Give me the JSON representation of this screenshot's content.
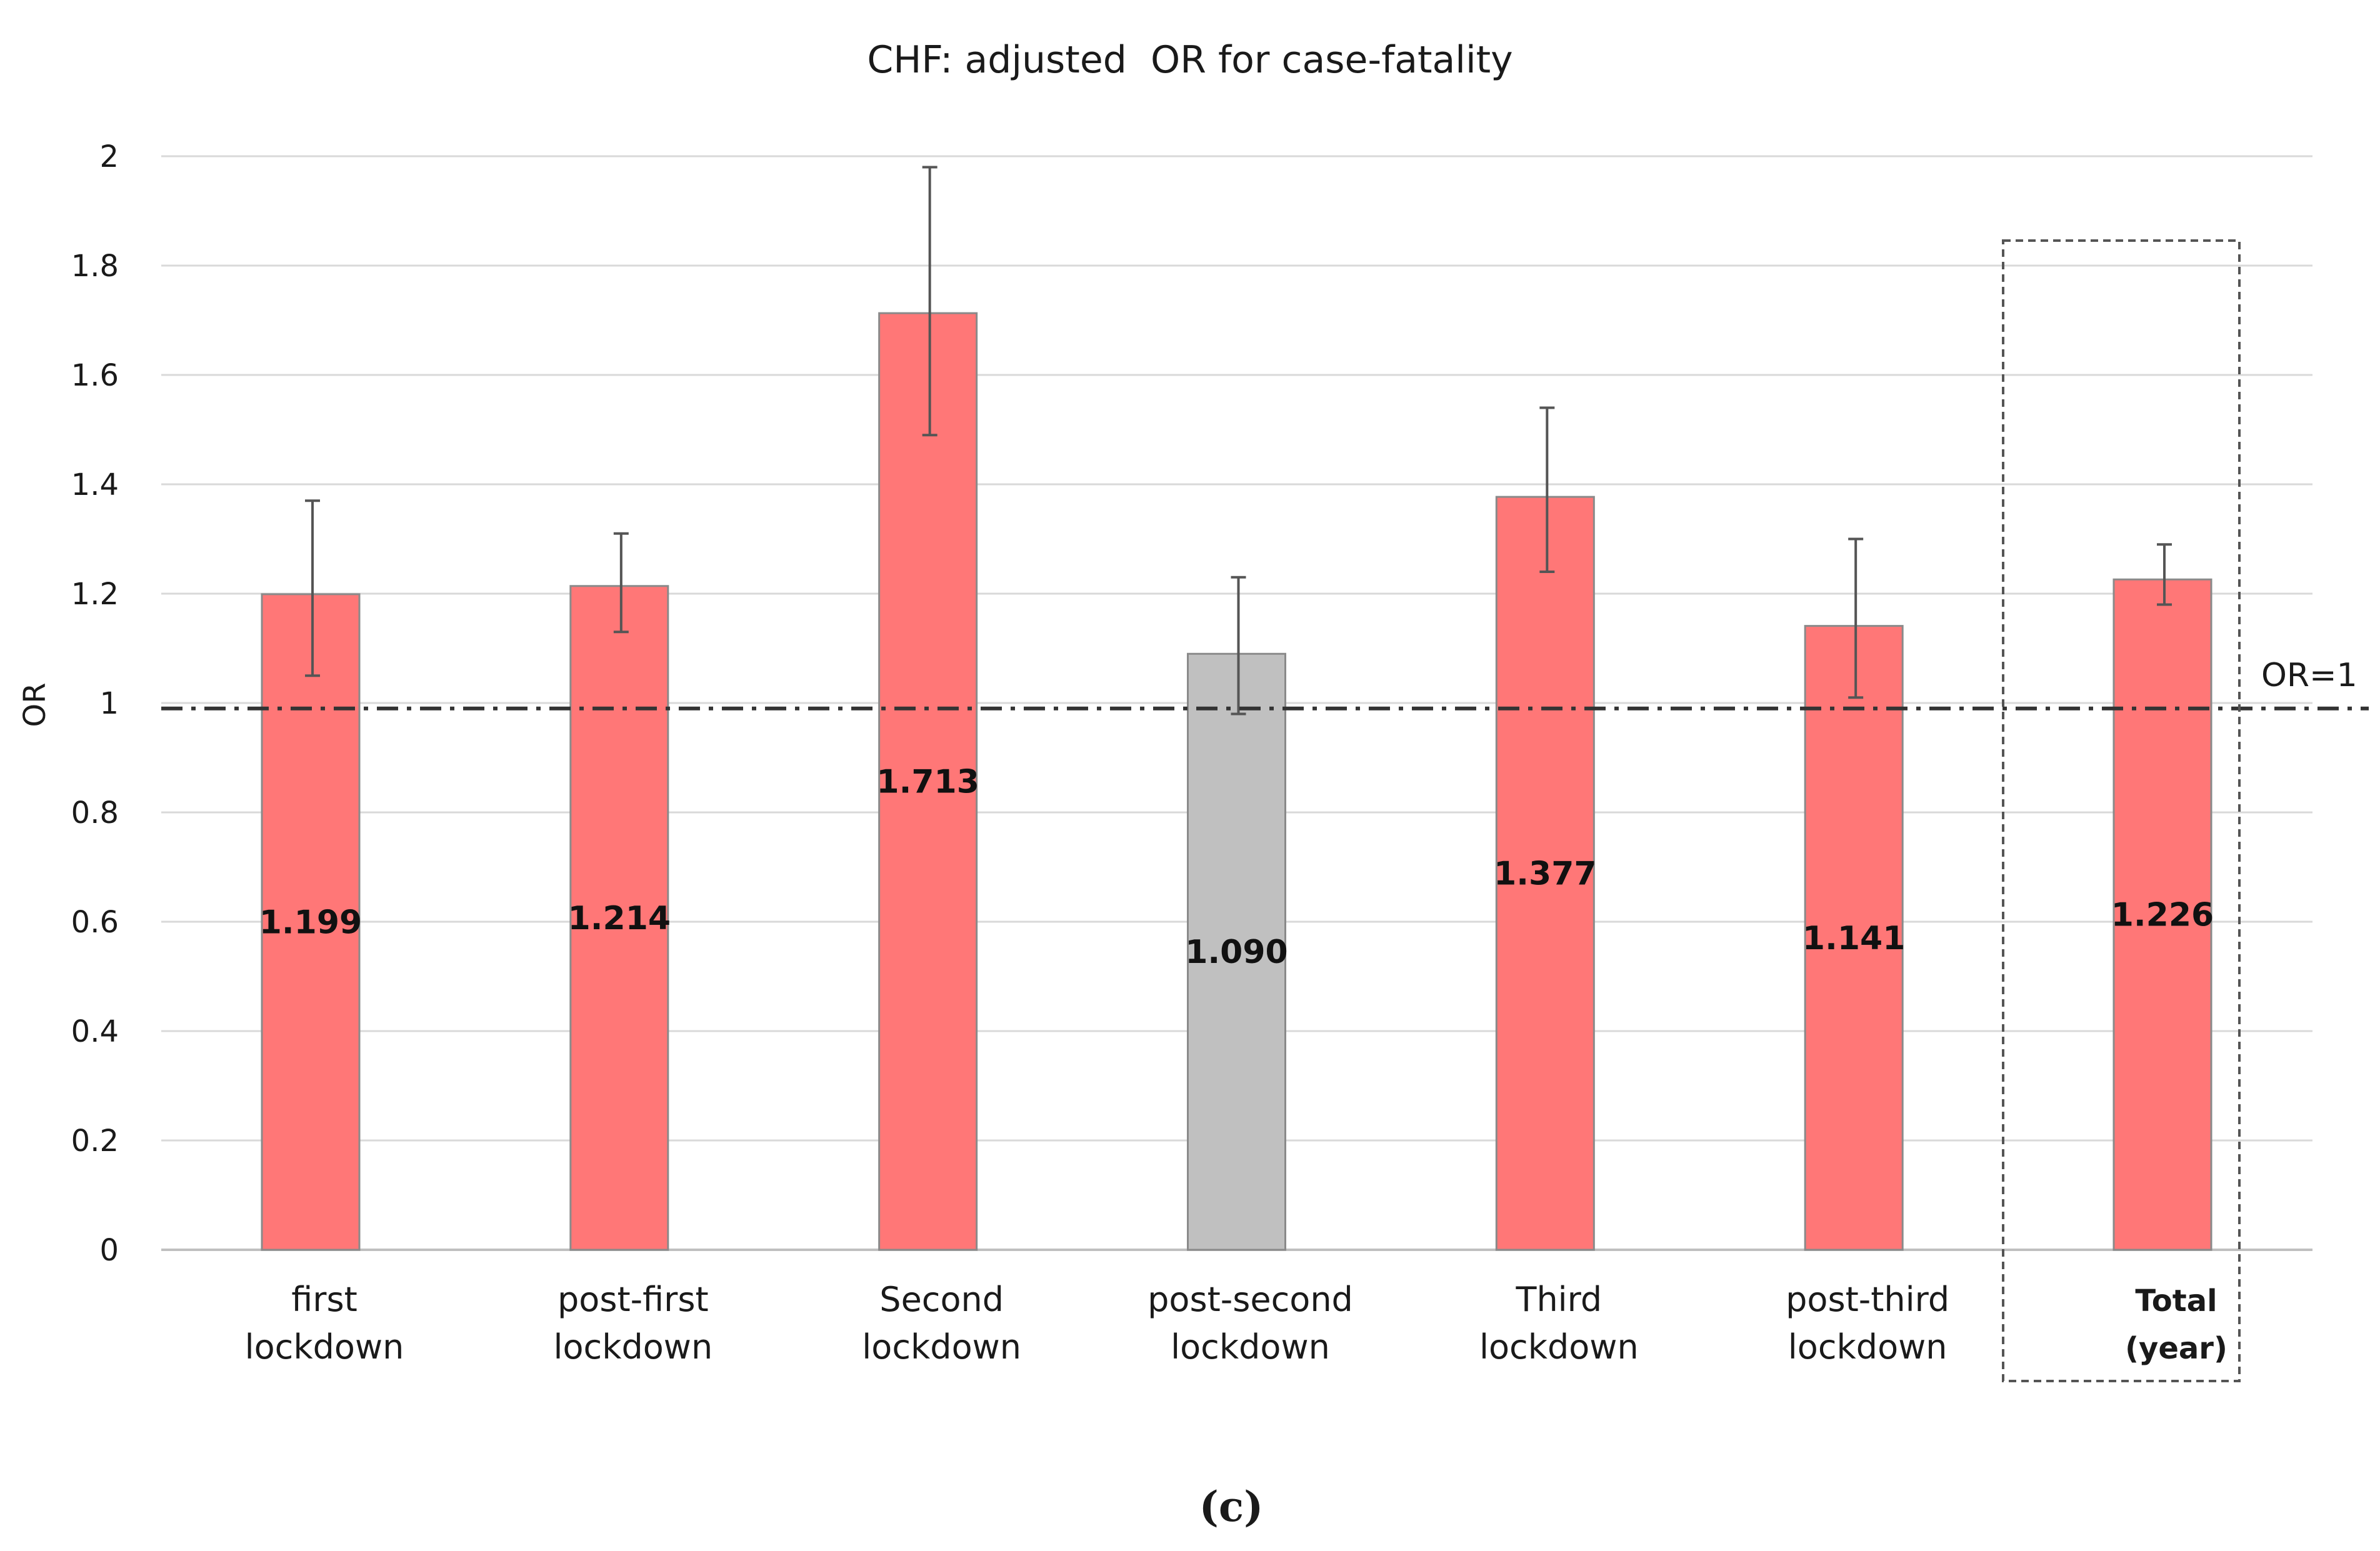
{
  "chart_data": {
    "type": "bar",
    "title": "CHF: adjusted  OR for case-fatality",
    "ylabel": "OR",
    "xlabel": "",
    "ylim": [
      0,
      2
    ],
    "yticks": [
      "0",
      "0.2",
      "0.4",
      "0.6",
      "0.8",
      "1",
      "1.2",
      "1.4",
      "1.6",
      "1.8",
      "2"
    ],
    "grid": true,
    "categories": [
      [
        "first",
        "lockdown"
      ],
      [
        "post-first",
        "lockdown"
      ],
      [
        "Second",
        "lockdown"
      ],
      [
        "post-second",
        "lockdown"
      ],
      [
        "Third",
        "lockdown"
      ],
      [
        "post-third",
        "lockdown"
      ],
      [
        "Total",
        "(year)"
      ]
    ],
    "values": [
      1.199,
      1.214,
      1.713,
      1.09,
      1.377,
      1.141,
      1.226
    ],
    "value_labels": [
      "1.199",
      "1.214",
      "1.713",
      "1.090",
      "1.377",
      "1.141",
      "1.226"
    ],
    "error_low": [
      1.05,
      1.13,
      1.49,
      0.98,
      1.24,
      1.01,
      1.18
    ],
    "error_high": [
      1.37,
      1.31,
      1.98,
      1.23,
      1.54,
      1.3,
      1.29
    ],
    "bar_colors": [
      "#ff7777",
      "#ff7777",
      "#ff7777",
      "#c0c0c0",
      "#ff7777",
      "#ff7777",
      "#ff7777"
    ],
    "highlighted_category": "Total (year)",
    "reference_line": {
      "value": 0.99,
      "label": "OR=1"
    }
  },
  "caption": "(c)",
  "colors": {
    "significant_bar": "#ff7777",
    "nonsignificant_bar": "#c0c0c0",
    "gridline": "#d9d9d9",
    "reference_line": "#333333"
  }
}
